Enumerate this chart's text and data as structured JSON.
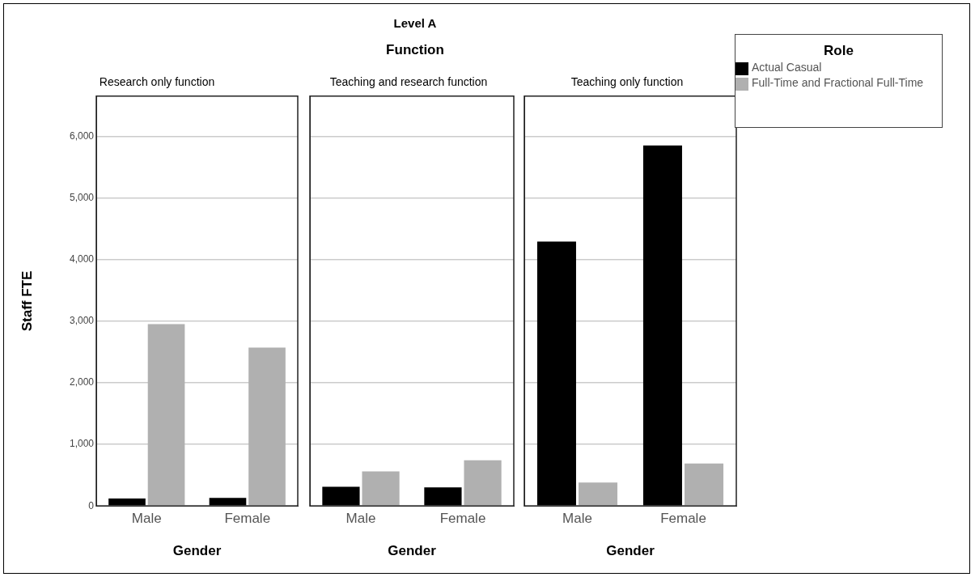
{
  "chart_data": [
    {
      "type": "bar",
      "title": "Research only function",
      "annotations": [
        "Level A",
        "Function"
      ],
      "xlabel": "Gender",
      "ylabel": "Staff FTE",
      "categories": [
        "Male",
        "Female"
      ],
      "series": [
        {
          "color": "#000000",
          "values": [
            120,
            130
          ]
        },
        {
          "color": "#b0b0b0",
          "values": [
            2950,
            2570
          ]
        }
      ],
      "ylim": [
        0,
        6650
      ],
      "yticks": [
        {
          "value": 0,
          "label": "0"
        },
        {
          "value": 1000,
          "label": "1,000"
        },
        {
          "value": 2000,
          "label": "2,000"
        },
        {
          "value": 3000,
          "label": "3,000"
        },
        {
          "value": 4000,
          "label": "4,000"
        },
        {
          "value": 5000,
          "label": "5,000"
        },
        {
          "value": 6000,
          "label": "6,000"
        }
      ],
      "grid": "y"
    },
    {
      "type": "bar",
      "title": "Teaching and research function",
      "xlabel": "Gender",
      "categories": [
        "Male",
        "Female"
      ],
      "series": [
        {
          "color": "#000000",
          "values": [
            310,
            300
          ]
        },
        {
          "color": "#b0b0b0",
          "values": [
            560,
            740
          ]
        }
      ],
      "ylim": [
        0,
        6650
      ],
      "yticks": [
        0,
        1000,
        2000,
        3000,
        4000,
        5000,
        6000
      ],
      "grid": "y",
      "tick_labels": "x"
    },
    {
      "type": "bar",
      "title": "Teaching only function",
      "xlabel": "Gender",
      "categories": [
        "Male",
        "Female"
      ],
      "legend": "right",
      "legend_title": "Role",
      "series": [
        {
          "name": "Actual Casual",
          "color": "#000000",
          "values": [
            4290,
            5850
          ]
        },
        {
          "name": "Full-Time and Fractional Full-Time",
          "color": "#b0b0b0",
          "values": [
            380,
            690
          ]
        }
      ],
      "ylim": [
        0,
        6650
      ],
      "yticks": [
        0,
        1000,
        2000,
        3000,
        4000,
        5000,
        6000
      ],
      "grid": "y",
      "tick_labels": "x"
    }
  ]
}
